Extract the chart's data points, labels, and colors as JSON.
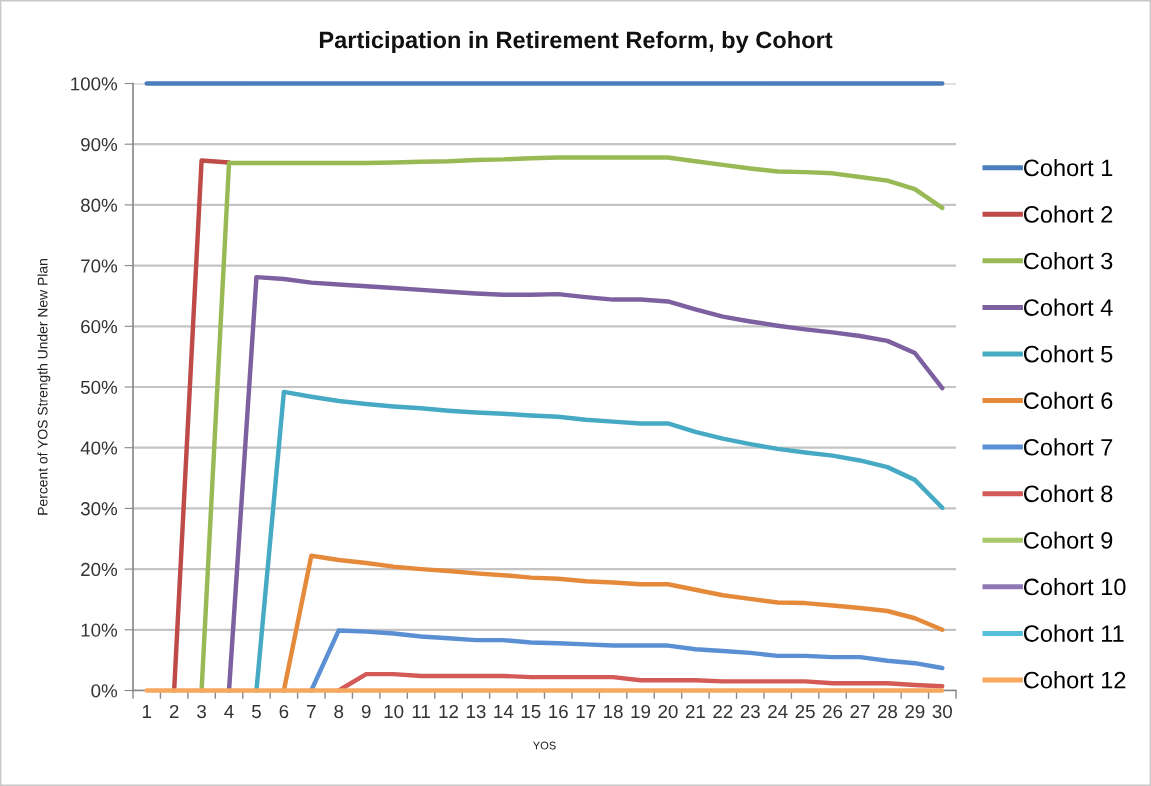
{
  "chart_data": {
    "type": "line",
    "title": "Participation in Retirement Reform, by Cohort",
    "xlabel": "YOS",
    "ylabel": "Percent of YOS Strength Under New Plan",
    "categories": [
      "1",
      "2",
      "3",
      "4",
      "5",
      "6",
      "7",
      "8",
      "9",
      "10",
      "11",
      "12",
      "13",
      "14",
      "15",
      "16",
      "17",
      "18",
      "19",
      "20",
      "21",
      "22",
      "23",
      "24",
      "25",
      "26",
      "27",
      "28",
      "29",
      "30"
    ],
    "ylim": [
      0,
      100
    ],
    "yticks": [
      {
        "value": 0,
        "label": "0%"
      },
      {
        "value": 10,
        "label": "10%"
      },
      {
        "value": 20,
        "label": "20%"
      },
      {
        "value": 30,
        "label": "30%"
      },
      {
        "value": 40,
        "label": "40%"
      },
      {
        "value": 50,
        "label": "50%"
      },
      {
        "value": 60,
        "label": "60%"
      },
      {
        "value": 70,
        "label": "70%"
      },
      {
        "value": 80,
        "label": "80%"
      },
      {
        "value": 90,
        "label": "90%"
      },
      {
        "value": 100,
        "label": "100%"
      }
    ],
    "grid": "y",
    "legend": "right",
    "line_style": "solid",
    "series": [
      {
        "name": "Cohort 1",
        "color": "#4a7ebb",
        "values": [
          100,
          100,
          100,
          100,
          100,
          100,
          100,
          100,
          100,
          100,
          100,
          100,
          100,
          100,
          100,
          100,
          100,
          100,
          100,
          100,
          100,
          100,
          100,
          100,
          100,
          100,
          100,
          100,
          100,
          100
        ]
      },
      {
        "name": "Cohort 2",
        "color": "#be4b48",
        "values": [
          null,
          0,
          87.3,
          87.0,
          null,
          null,
          null,
          null,
          null,
          null,
          null,
          null,
          null,
          null,
          null,
          null,
          null,
          null,
          null,
          null,
          null,
          null,
          null,
          null,
          null,
          null,
          null,
          null,
          null,
          null
        ]
      },
      {
        "name": "Cohort 3",
        "color": "#98b954",
        "values": [
          null,
          null,
          0,
          86.9,
          86.9,
          86.9,
          86.9,
          86.9,
          86.9,
          87.0,
          87.1,
          87.2,
          87.4,
          87.5,
          87.7,
          87.8,
          87.8,
          87.8,
          87.8,
          87.8,
          87.2,
          86.6,
          86.0,
          85.5,
          85.4,
          85.2,
          84.6,
          84.0,
          82.6,
          79.5
        ]
      },
      {
        "name": "Cohort 4",
        "color": "#7d60a0",
        "values": [
          null,
          null,
          null,
          0,
          68.1,
          67.8,
          67.2,
          66.9,
          66.6,
          66.3,
          66.0,
          65.7,
          65.4,
          65.2,
          65.2,
          65.3,
          64.8,
          64.4,
          64.4,
          64.1,
          62.8,
          61.6,
          60.8,
          60.1,
          59.5,
          59.0,
          58.4,
          57.6,
          55.6,
          49.8
        ]
      },
      {
        "name": "Cohort 5",
        "color": "#46aac5",
        "values": [
          null,
          null,
          null,
          null,
          0,
          49.2,
          48.4,
          47.7,
          47.2,
          46.8,
          46.5,
          46.1,
          45.8,
          45.6,
          45.3,
          45.1,
          44.6,
          44.3,
          44.0,
          44.0,
          42.6,
          41.5,
          40.6,
          39.8,
          39.2,
          38.7,
          37.9,
          36.8,
          34.7,
          30.1
        ]
      },
      {
        "name": "Cohort 6",
        "color": "#e58a3a",
        "values": [
          null,
          null,
          null,
          null,
          null,
          0,
          22.2,
          21.5,
          21.0,
          20.4,
          20.0,
          19.7,
          19.3,
          19.0,
          18.6,
          18.4,
          18.0,
          17.8,
          17.5,
          17.5,
          16.6,
          15.7,
          15.1,
          14.5,
          14.4,
          14.0,
          13.6,
          13.1,
          11.9,
          10.0
        ]
      },
      {
        "name": "Cohort 7",
        "color": "#5a90d3",
        "values": [
          null,
          null,
          null,
          null,
          null,
          null,
          0,
          9.9,
          9.7,
          9.4,
          8.9,
          8.6,
          8.3,
          8.3,
          7.9,
          7.8,
          7.6,
          7.4,
          7.4,
          7.4,
          6.8,
          6.5,
          6.2,
          5.7,
          5.7,
          5.5,
          5.5,
          4.9,
          4.5,
          3.7
        ]
      },
      {
        "name": "Cohort 8",
        "color": "#d35a57",
        "values": [
          null,
          null,
          null,
          null,
          null,
          null,
          null,
          0,
          2.7,
          2.7,
          2.4,
          2.4,
          2.4,
          2.4,
          2.2,
          2.2,
          2.2,
          2.2,
          1.7,
          1.7,
          1.7,
          1.5,
          1.5,
          1.5,
          1.5,
          1.2,
          1.2,
          1.2,
          0.9,
          0.7
        ]
      },
      {
        "name": "Cohort 9",
        "color": "#a7c96a",
        "values": [
          null,
          null,
          null,
          null,
          null,
          null,
          null,
          null,
          null,
          null,
          null,
          null,
          null,
          null,
          null,
          null,
          null,
          null,
          null,
          null,
          null,
          null,
          null,
          null,
          null,
          null,
          null,
          null,
          null,
          null
        ]
      },
      {
        "name": "Cohort 10",
        "color": "#8f76b5",
        "values": [
          null,
          null,
          null,
          null,
          null,
          null,
          null,
          null,
          null,
          null,
          null,
          null,
          null,
          null,
          null,
          null,
          null,
          null,
          null,
          null,
          null,
          null,
          null,
          null,
          null,
          null,
          null,
          null,
          null,
          null
        ]
      },
      {
        "name": "Cohort 11",
        "color": "#56bed9",
        "values": [
          null,
          null,
          null,
          null,
          null,
          null,
          null,
          null,
          null,
          null,
          null,
          null,
          null,
          null,
          null,
          null,
          null,
          null,
          null,
          null,
          null,
          null,
          null,
          null,
          null,
          null,
          null,
          null,
          null,
          null
        ]
      },
      {
        "name": "Cohort 12",
        "color": "#f5a85e",
        "values": [
          0,
          0,
          0,
          0,
          0,
          0,
          0,
          0,
          0,
          0,
          0,
          0,
          0,
          0,
          0,
          0,
          0,
          0,
          0,
          0,
          0,
          0,
          0,
          0,
          0,
          0,
          0,
          0,
          0,
          0
        ]
      }
    ]
  }
}
